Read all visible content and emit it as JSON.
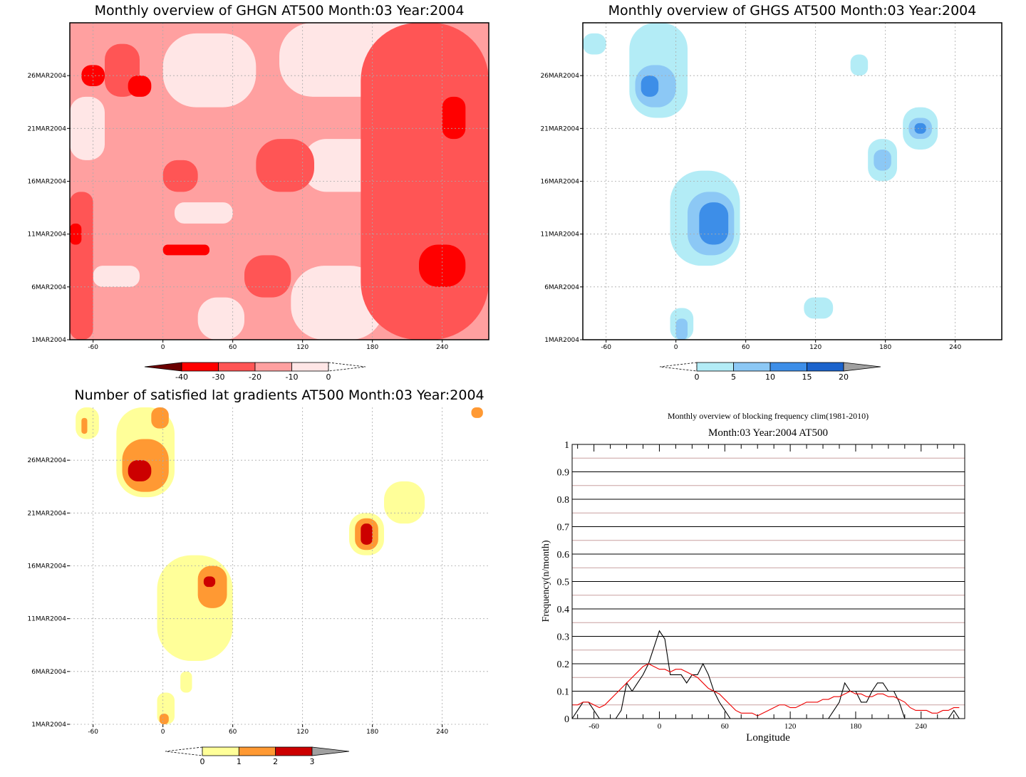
{
  "palettes": {
    "red": [
      "#6b0000",
      "#ff0000",
      "#ff5555",
      "#ffa0a0",
      "#ffe6e6"
    ],
    "blue": [
      "#b3ecf6",
      "#8cc8f5",
      "#3d8ee8",
      "#1b63cc",
      "#a0a0a0"
    ],
    "yellow": [
      "#ffff99",
      "#ff9933",
      "#cc0000",
      "#a0a0a0"
    ]
  },
  "chart_data": [
    {
      "type": "heatmap",
      "title": "Monthly overview of GHGN AT500 Month:03 Year:2004",
      "x_ticks": [
        "-60",
        "0",
        "60",
        "120",
        "180",
        "240"
      ],
      "x_tick_values": [
        -60,
        0,
        60,
        120,
        180,
        240
      ],
      "xlim": [
        -80,
        280
      ],
      "y_ticks": [
        "1MAR2004",
        "6MAR2004",
        "11MAR2004",
        "16MAR2004",
        "21MAR2004",
        "26MAR2004"
      ],
      "y_tick_values": [
        1,
        6,
        11,
        16,
        21,
        26
      ],
      "ylim": [
        1,
        31
      ],
      "colorbar": {
        "labels": [
          "-40",
          "-30",
          "-20",
          "-10",
          "0"
        ],
        "colors": [
          "#ff0000",
          "#ff5555",
          "#ffa0a0",
          "#ffe6e6"
        ]
      },
      "regions": [
        {
          "level": -20,
          "x": [
            -80,
            280
          ],
          "y": [
            1,
            31
          ]
        },
        {
          "level": -10,
          "x": [
            -80,
            -50
          ],
          "y": [
            18,
            24
          ]
        },
        {
          "level": -10,
          "x": [
            0,
            80
          ],
          "y": [
            23,
            30
          ]
        },
        {
          "level": -10,
          "x": [
            100,
            240
          ],
          "y": [
            24,
            31
          ]
        },
        {
          "level": -10,
          "x": [
            120,
            200
          ],
          "y": [
            15,
            20
          ]
        },
        {
          "level": -10,
          "x": [
            110,
            190
          ],
          "y": [
            1,
            8
          ]
        },
        {
          "level": -10,
          "x": [
            10,
            60
          ],
          "y": [
            12,
            14
          ]
        },
        {
          "level": -10,
          "x": [
            30,
            70
          ],
          "y": [
            1,
            5
          ]
        },
        {
          "level": -10,
          "x": [
            -60,
            -20
          ],
          "y": [
            6,
            8
          ]
        },
        {
          "level": -30,
          "x": [
            170,
            280
          ],
          "y": [
            1,
            31
          ]
        },
        {
          "level": -30,
          "x": [
            80,
            130
          ],
          "y": [
            15,
            20
          ]
        },
        {
          "level": -30,
          "x": [
            -80,
            -60
          ],
          "y": [
            1,
            15
          ]
        },
        {
          "level": -30,
          "x": [
            -50,
            -20
          ],
          "y": [
            24,
            29
          ]
        },
        {
          "level": -30,
          "x": [
            0,
            30
          ],
          "y": [
            15,
            18
          ]
        },
        {
          "level": -30,
          "x": [
            70,
            110
          ],
          "y": [
            5,
            9
          ]
        },
        {
          "level": -40,
          "x": [
            -70,
            -50
          ],
          "y": [
            25,
            27
          ]
        },
        {
          "level": -40,
          "x": [
            -30,
            -10
          ],
          "y": [
            24,
            26
          ]
        },
        {
          "level": -40,
          "x": [
            240,
            260
          ],
          "y": [
            20,
            24
          ]
        },
        {
          "level": -40,
          "x": [
            220,
            260
          ],
          "y": [
            6,
            10
          ]
        },
        {
          "level": -40,
          "x": [
            0,
            40
          ],
          "y": [
            9,
            10
          ]
        },
        {
          "level": -40,
          "x": [
            -80,
            -70
          ],
          "y": [
            10,
            12
          ]
        }
      ]
    },
    {
      "type": "heatmap",
      "title": "Monthly overview of GHGS AT500 Month:03 Year:2004",
      "x_ticks": [
        "-60",
        "0",
        "60",
        "120",
        "180",
        "240"
      ],
      "x_tick_values": [
        -60,
        0,
        60,
        120,
        180,
        240
      ],
      "xlim": [
        -80,
        280
      ],
      "y_ticks": [
        "1MAR2004",
        "6MAR2004",
        "11MAR2004",
        "16MAR2004",
        "21MAR2004",
        "26MAR2004"
      ],
      "y_tick_values": [
        1,
        6,
        11,
        16,
        21,
        26
      ],
      "ylim": [
        1,
        31
      ],
      "colorbar": {
        "labels": [
          "0",
          "5",
          "10",
          "15",
          "20"
        ],
        "colors": [
          "#b3ecf6",
          "#8cc8f5",
          "#3d8ee8",
          "#1b63cc"
        ]
      },
      "regions": [
        {
          "level": 0,
          "x": [
            -80,
            -60
          ],
          "y": [
            28,
            30
          ]
        },
        {
          "level": 0,
          "x": [
            -40,
            10
          ],
          "y": [
            22,
            31
          ]
        },
        {
          "level": 5,
          "x": [
            -35,
            0
          ],
          "y": [
            23,
            27
          ]
        },
        {
          "level": 10,
          "x": [
            -30,
            -15
          ],
          "y": [
            24,
            26
          ]
        },
        {
          "level": 0,
          "x": [
            150,
            165
          ],
          "y": [
            26,
            28
          ]
        },
        {
          "level": 0,
          "x": [
            195,
            225
          ],
          "y": [
            19,
            23
          ]
        },
        {
          "level": 5,
          "x": [
            200,
            220
          ],
          "y": [
            20,
            22
          ]
        },
        {
          "level": 10,
          "x": [
            205,
            215
          ],
          "y": [
            20.5,
            21.5
          ]
        },
        {
          "level": 0,
          "x": [
            165,
            190
          ],
          "y": [
            16,
            20
          ]
        },
        {
          "level": 5,
          "x": [
            170,
            185
          ],
          "y": [
            17,
            19
          ]
        },
        {
          "level": 0,
          "x": [
            -5,
            55
          ],
          "y": [
            8,
            17
          ]
        },
        {
          "level": 5,
          "x": [
            10,
            50
          ],
          "y": [
            9,
            15
          ]
        },
        {
          "level": 10,
          "x": [
            20,
            45
          ],
          "y": [
            10,
            14
          ]
        },
        {
          "level": 0,
          "x": [
            110,
            135
          ],
          "y": [
            3,
            5
          ]
        },
        {
          "level": 0,
          "x": [
            -5,
            15
          ],
          "y": [
            1,
            4
          ]
        },
        {
          "level": 5,
          "x": [
            0,
            10
          ],
          "y": [
            1,
            3
          ]
        }
      ]
    },
    {
      "type": "heatmap",
      "title": "Number of satisfied lat gradients AT500 Month:03 Year:2004",
      "x_ticks": [
        "-60",
        "0",
        "60",
        "120",
        "180",
        "240"
      ],
      "x_tick_values": [
        -60,
        0,
        60,
        120,
        180,
        240
      ],
      "xlim": [
        -80,
        280
      ],
      "y_ticks": [
        "1MAR2004",
        "6MAR2004",
        "11MAR2004",
        "16MAR2004",
        "21MAR2004",
        "26MAR2004"
      ],
      "y_tick_values": [
        1,
        6,
        11,
        16,
        21,
        26
      ],
      "ylim": [
        1,
        31
      ],
      "colorbar": {
        "labels": [
          "0",
          "1",
          "2",
          "3"
        ],
        "colors": [
          "#ffff99",
          "#ff9933",
          "#cc0000"
        ]
      },
      "regions": [
        {
          "level": 1,
          "x": [
            -75,
            -55
          ],
          "y": [
            28,
            31
          ]
        },
        {
          "level": 2,
          "x": [
            -70,
            -65
          ],
          "y": [
            28.5,
            30
          ]
        },
        {
          "level": 1,
          "x": [
            -40,
            10
          ],
          "y": [
            22.5,
            31
          ]
        },
        {
          "level": 2,
          "x": [
            -35,
            5
          ],
          "y": [
            23,
            28
          ]
        },
        {
          "level": 3,
          "x": [
            -30,
            -10
          ],
          "y": [
            24,
            26
          ]
        },
        {
          "level": 2,
          "x": [
            -10,
            5
          ],
          "y": [
            29,
            31
          ]
        },
        {
          "level": 1,
          "x": [
            160,
            190
          ],
          "y": [
            17,
            21
          ]
        },
        {
          "level": 2,
          "x": [
            165,
            185
          ],
          "y": [
            17.5,
            20.5
          ]
        },
        {
          "level": 3,
          "x": [
            170,
            180
          ],
          "y": [
            18,
            20
          ]
        },
        {
          "level": 1,
          "x": [
            190,
            225
          ],
          "y": [
            20,
            24
          ]
        },
        {
          "level": 1,
          "x": [
            -5,
            60
          ],
          "y": [
            7,
            17
          ]
        },
        {
          "level": 2,
          "x": [
            30,
            55
          ],
          "y": [
            12,
            16
          ]
        },
        {
          "level": 3,
          "x": [
            35,
            45
          ],
          "y": [
            14,
            15
          ]
        },
        {
          "level": 1,
          "x": [
            15,
            25
          ],
          "y": [
            4,
            6
          ]
        },
        {
          "level": 1,
          "x": [
            -5,
            10
          ],
          "y": [
            1,
            4
          ]
        },
        {
          "level": 2,
          "x": [
            -3,
            5
          ],
          "y": [
            1,
            2
          ]
        },
        {
          "level": 2,
          "x": [
            265,
            275
          ],
          "y": [
            30,
            31
          ]
        }
      ]
    },
    {
      "type": "line",
      "title": "Monthly overview of blocking frequency clim(1981-2010)",
      "subtitle": "Month:03 Year:2004  AT500",
      "xlabel": "Longitude",
      "ylabel": "Frequency(n/month)",
      "xlim": [
        -80,
        280
      ],
      "ylim": [
        0,
        1
      ],
      "x_ticks": [
        "-60",
        "0",
        "60",
        "120",
        "180",
        "240"
      ],
      "x_tick_values": [
        -60,
        0,
        60,
        120,
        180,
        240
      ],
      "y_ticks": [
        "0",
        "0.1",
        "0.2",
        "0.3",
        "0.4",
        "0.5",
        "0.6",
        "0.7",
        "0.8",
        "0.9",
        "1"
      ],
      "y_tick_values": [
        0,
        0.1,
        0.2,
        0.3,
        0.4,
        0.5,
        0.6,
        0.7,
        0.8,
        0.9,
        1.0
      ],
      "grid": true,
      "series": [
        {
          "color": "#000000",
          "x": [
            -80,
            -75,
            -70,
            -65,
            -60,
            -55,
            -50,
            -45,
            -40,
            -35,
            -30,
            -25,
            -20,
            -15,
            -10,
            -5,
            0,
            5,
            10,
            15,
            20,
            25,
            30,
            35,
            40,
            45,
            50,
            55,
            60,
            65,
            70,
            75,
            80,
            85,
            90,
            95,
            100,
            105,
            110,
            115,
            120,
            125,
            130,
            135,
            140,
            145,
            150,
            155,
            160,
            165,
            170,
            175,
            180,
            185,
            190,
            195,
            200,
            205,
            210,
            215,
            220,
            225,
            230,
            235,
            240,
            245,
            250,
            255,
            260,
            265,
            270,
            275
          ],
          "values": [
            0,
            0.03,
            0.06,
            0.06,
            0.03,
            0,
            0,
            0,
            0,
            0.03,
            0.13,
            0.1,
            0.13,
            0.16,
            0.2,
            0.26,
            0.32,
            0.29,
            0.16,
            0.16,
            0.16,
            0.13,
            0.16,
            0.16,
            0.2,
            0.16,
            0.1,
            0.06,
            0.03,
            0,
            0,
            0,
            0,
            0,
            0,
            0,
            0,
            0,
            0,
            0,
            0,
            0,
            0,
            0,
            0,
            0,
            0,
            0,
            0.03,
            0.06,
            0.13,
            0.1,
            0.1,
            0.06,
            0.06,
            0.1,
            0.13,
            0.13,
            0.1,
            0.1,
            0.06,
            0,
            0,
            0,
            0,
            0,
            0,
            0,
            0,
            0,
            0.03,
            0
          ]
        },
        {
          "color": "#ee0000",
          "x": [
            -80,
            -75,
            -70,
            -65,
            -60,
            -55,
            -50,
            -45,
            -40,
            -35,
            -30,
            -25,
            -20,
            -15,
            -10,
            -5,
            0,
            5,
            10,
            15,
            20,
            25,
            30,
            35,
            40,
            45,
            50,
            55,
            60,
            65,
            70,
            75,
            80,
            85,
            90,
            95,
            100,
            105,
            110,
            115,
            120,
            125,
            130,
            135,
            140,
            145,
            150,
            155,
            160,
            165,
            170,
            175,
            180,
            185,
            190,
            195,
            200,
            205,
            210,
            215,
            220,
            225,
            230,
            235,
            240,
            245,
            250,
            255,
            260,
            265,
            270,
            275
          ],
          "values": [
            0.05,
            0.05,
            0.06,
            0.06,
            0.05,
            0.04,
            0.05,
            0.07,
            0.09,
            0.11,
            0.13,
            0.15,
            0.17,
            0.19,
            0.2,
            0.19,
            0.18,
            0.18,
            0.17,
            0.18,
            0.18,
            0.17,
            0.16,
            0.15,
            0.13,
            0.11,
            0.1,
            0.09,
            0.07,
            0.05,
            0.03,
            0.02,
            0.02,
            0.02,
            0.01,
            0.02,
            0.03,
            0.04,
            0.05,
            0.05,
            0.04,
            0.04,
            0.05,
            0.06,
            0.06,
            0.06,
            0.07,
            0.07,
            0.08,
            0.08,
            0.09,
            0.1,
            0.09,
            0.09,
            0.08,
            0.08,
            0.09,
            0.09,
            0.08,
            0.08,
            0.07,
            0.06,
            0.04,
            0.03,
            0.03,
            0.03,
            0.02,
            0.02,
            0.03,
            0.03,
            0.04,
            0.04
          ]
        }
      ]
    }
  ]
}
